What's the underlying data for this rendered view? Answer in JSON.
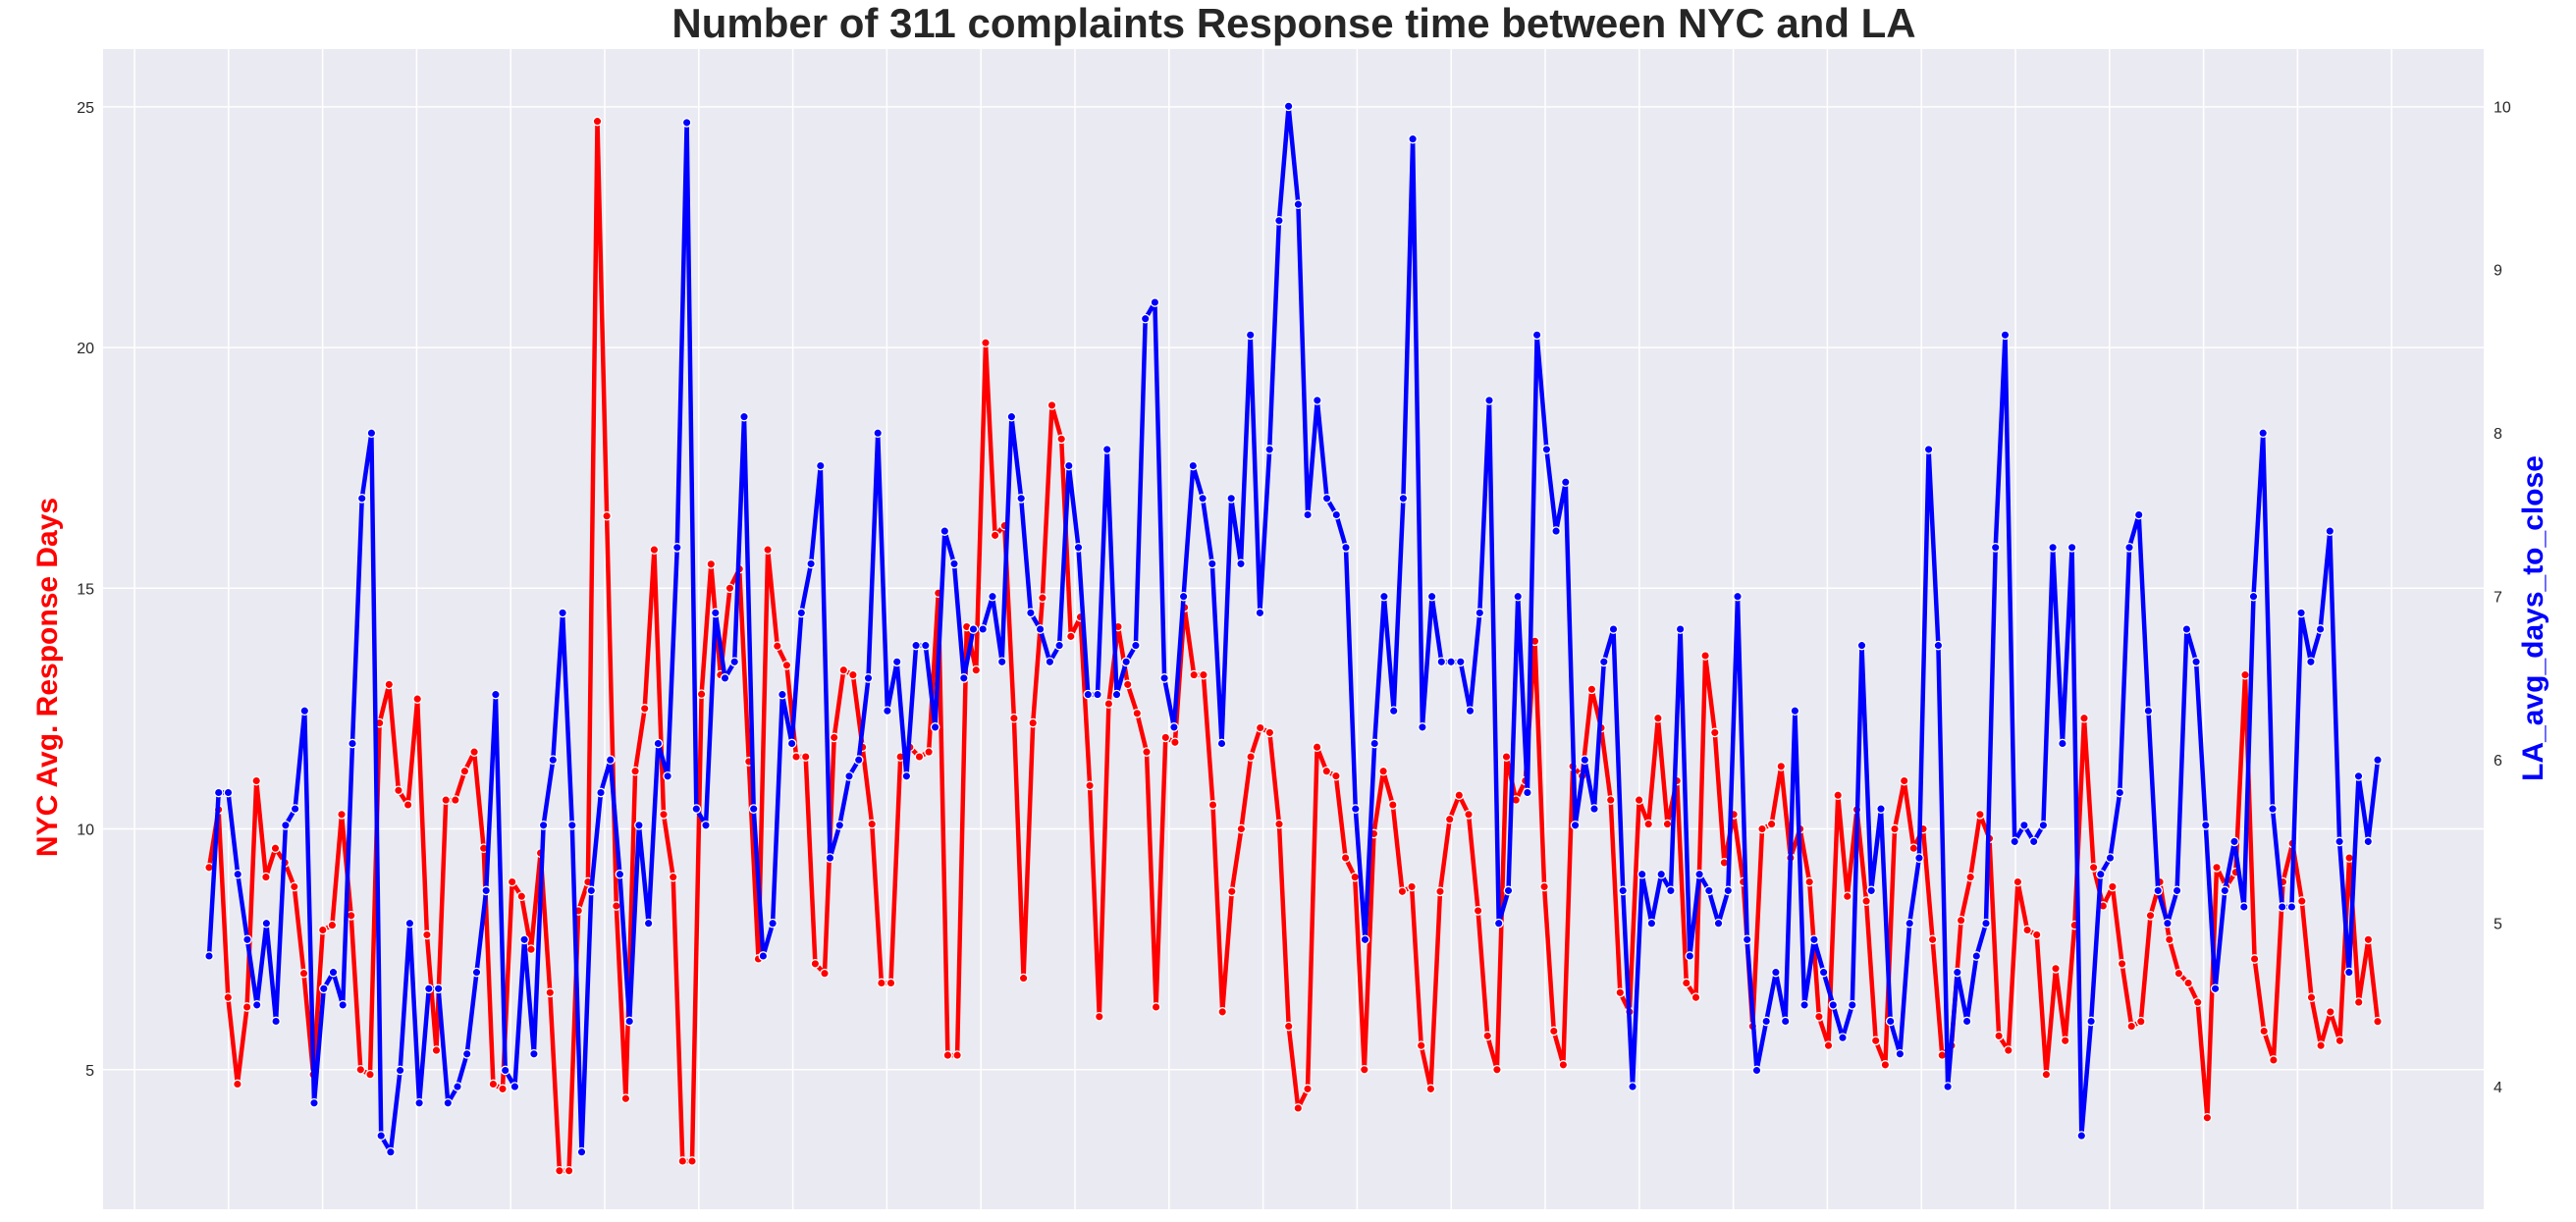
{
  "chart_data": {
    "type": "line",
    "title": "Number of 311 complaints Response time between NYC and LA",
    "xlabel": "",
    "ylabel_left": "NYC Avg. Response Days",
    "ylabel_right": "LA_avg_days_to_close",
    "grid": true,
    "background": "#eaeaf2",
    "y_left": {
      "ylim": [
        2.1,
        26.2
      ],
      "ticks": [
        5,
        10,
        15,
        20,
        25
      ],
      "tick_labels": [
        "5",
        "10",
        "15",
        "20",
        "25"
      ]
    },
    "y_right": {
      "ylim": [
        3.25,
        10.35
      ],
      "ticks": [
        4,
        5,
        6,
        7,
        8,
        9,
        10
      ],
      "tick_labels": [
        "4",
        "5",
        "6",
        "7",
        "8",
        "9",
        "10"
      ]
    },
    "x_gridlines": 25,
    "series": [
      {
        "name": "NYC Avg. Response Days",
        "axis": "left",
        "color": "#ff0000",
        "values": [
          9.2,
          10.4,
          6.5,
          4.7,
          6.3,
          11.0,
          9.0,
          9.6,
          9.3,
          8.8,
          7.0,
          4.9,
          7.9,
          8.0,
          10.3,
          8.2,
          5.0,
          4.9,
          12.2,
          13.0,
          10.8,
          10.5,
          12.7,
          7.8,
          5.4,
          10.6,
          10.6,
          11.2,
          11.6,
          9.6,
          4.7,
          4.6,
          8.9,
          8.6,
          7.5,
          9.5,
          6.6,
          2.9,
          2.9,
          8.3,
          8.9,
          24.7,
          16.5,
          8.4,
          4.4,
          11.2,
          12.5,
          15.8,
          10.3,
          9.0,
          3.1,
          3.1,
          12.8,
          15.5,
          13.2,
          15.0,
          15.4,
          11.4,
          7.3,
          15.8,
          13.8,
          13.4,
          11.5,
          11.5,
          7.2,
          7.0,
          11.9,
          13.3,
          13.2,
          11.7,
          10.1,
          6.8,
          6.8,
          11.5,
          11.7,
          11.5,
          11.6,
          14.9,
          5.3,
          5.3,
          14.2,
          13.3,
          20.1,
          16.1,
          16.3,
          12.3,
          6.9,
          12.2,
          14.8,
          18.8,
          18.1,
          14.0,
          14.4,
          10.9,
          6.1,
          12.6,
          14.2,
          13.0,
          12.4,
          11.6,
          6.3,
          11.9,
          11.8,
          14.6,
          13.2,
          13.2,
          10.5,
          6.2,
          8.7,
          10.0,
          11.5,
          12.1,
          12.0,
          10.1,
          5.9,
          4.2,
          4.6,
          11.7,
          11.2,
          11.1,
          9.4,
          9.0,
          5.0,
          9.9,
          11.2,
          10.5,
          8.7,
          8.8,
          5.5,
          4.6,
          8.7,
          10.2,
          10.7,
          10.3,
          8.3,
          5.7,
          5.0,
          11.5,
          10.6,
          11.0,
          13.9,
          8.8,
          5.8,
          5.1,
          11.3,
          11.1,
          12.9,
          12.1,
          10.6,
          6.6,
          6.2,
          10.6,
          10.1,
          12.3,
          10.1,
          11.0,
          6.8,
          6.5,
          13.6,
          12.0,
          9.3,
          10.3,
          8.9,
          5.9,
          10.0,
          10.1,
          11.3,
          9.4,
          10.0,
          8.9,
          6.1,
          5.5,
          10.7,
          8.6,
          10.4,
          8.5,
          5.6,
          5.1,
          10.0,
          11.0,
          9.6,
          10.0,
          7.7,
          5.3,
          5.5,
          8.1,
          9.0,
          10.3,
          9.8,
          5.7,
          5.4,
          8.9,
          7.9,
          7.8,
          4.9,
          7.1,
          5.6,
          8.0,
          12.3,
          9.2,
          8.4,
          8.8,
          7.2,
          5.9,
          6.0,
          8.2,
          8.9,
          7.7,
          7.0,
          6.8,
          6.4,
          4.0,
          9.2,
          8.8,
          9.1,
          13.2,
          7.3,
          5.8,
          5.2,
          8.9,
          9.7,
          8.5,
          6.5,
          5.5,
          6.2,
          5.6,
          9.4,
          6.4,
          7.7,
          6.0
        ]
      },
      {
        "name": "LA_avg_days_to_close",
        "axis": "right",
        "color": "#0000ff",
        "values": [
          4.8,
          5.8,
          5.8,
          5.3,
          4.9,
          4.5,
          5.0,
          4.4,
          5.6,
          5.7,
          6.3,
          3.9,
          4.6,
          4.7,
          4.5,
          6.1,
          7.6,
          8.0,
          3.7,
          3.6,
          4.1,
          5.0,
          3.9,
          4.6,
          4.6,
          3.9,
          4.0,
          4.2,
          4.7,
          5.2,
          6.4,
          4.1,
          4.0,
          4.9,
          4.2,
          5.6,
          6.0,
          6.9,
          5.6,
          3.6,
          5.2,
          5.8,
          6.0,
          5.3,
          4.4,
          5.6,
          5.0,
          6.1,
          5.9,
          7.3,
          9.9,
          5.7,
          5.6,
          6.9,
          6.5,
          6.6,
          8.1,
          5.7,
          4.8,
          5.0,
          6.4,
          6.1,
          6.9,
          7.2,
          7.8,
          5.4,
          5.6,
          5.9,
          6.0,
          6.5,
          8.0,
          6.3,
          6.6,
          5.9,
          6.7,
          6.7,
          6.2,
          7.4,
          7.2,
          6.5,
          6.8,
          6.8,
          7.0,
          6.6,
          8.1,
          7.6,
          6.9,
          6.8,
          6.6,
          6.7,
          7.8,
          7.3,
          6.4,
          6.4,
          7.9,
          6.4,
          6.6,
          6.7,
          8.7,
          8.8,
          6.5,
          6.2,
          7.0,
          7.8,
          7.6,
          7.2,
          6.1,
          7.6,
          7.2,
          8.6,
          6.9,
          7.9,
          9.3,
          10.0,
          9.4,
          7.5,
          8.2,
          7.6,
          7.5,
          7.3,
          5.7,
          4.9,
          6.1,
          7.0,
          6.3,
          7.6,
          9.8,
          6.2,
          7.0,
          6.6,
          6.6,
          6.6,
          6.3,
          6.9,
          8.2,
          5.0,
          5.2,
          7.0,
          5.8,
          8.6,
          7.9,
          7.4,
          7.7,
          5.6,
          6.0,
          5.7,
          6.6,
          6.8,
          5.2,
          4.0,
          5.3,
          5.0,
          5.3,
          5.2,
          6.8,
          4.8,
          5.3,
          5.2,
          5.0,
          5.2,
          7.0,
          4.9,
          4.1,
          4.4,
          4.7,
          4.4,
          6.3,
          4.5,
          4.9,
          4.7,
          4.5,
          4.3,
          4.5,
          6.7,
          5.2,
          5.7,
          4.4,
          4.2,
          5.0,
          5.4,
          7.9,
          6.7,
          4.0,
          4.7,
          4.4,
          4.8,
          5.0,
          7.3,
          8.6,
          5.5,
          5.6,
          5.5,
          5.6,
          7.3,
          6.1,
          7.3,
          3.7,
          4.4,
          5.3,
          5.4,
          5.8,
          7.3,
          7.5,
          6.3,
          5.2,
          5.0,
          5.2,
          6.8,
          6.6,
          5.6,
          4.6,
          5.2,
          5.5,
          5.1,
          7.0,
          8.0,
          5.7,
          5.1,
          5.1,
          6.9,
          6.6,
          6.8,
          7.4,
          5.5,
          4.7,
          5.9,
          5.5,
          6.0
        ]
      }
    ]
  }
}
